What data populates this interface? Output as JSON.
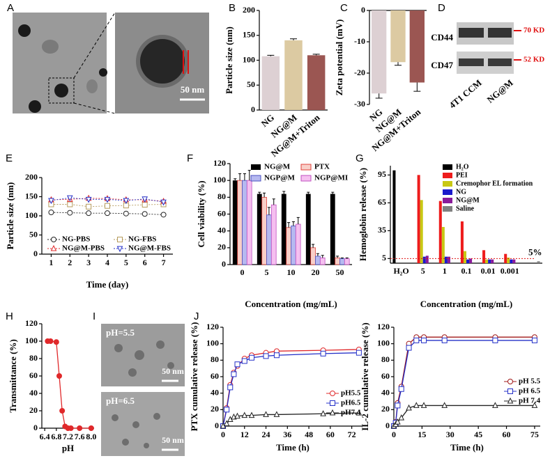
{
  "figure": {
    "panel_labels": [
      "A",
      "B",
      "C",
      "D",
      "E",
      "F",
      "G",
      "H",
      "I",
      "J"
    ],
    "tem_scale": "50 nm",
    "blot": {
      "rows": [
        "CD44",
        "CD47"
      ],
      "markers": [
        "70 KD",
        "52 KD"
      ],
      "lanes": [
        "4T1 CCM",
        "NG@M"
      ]
    },
    "micrographs": [
      {
        "label": "pH=5.5",
        "scale": "50 nm"
      },
      {
        "label": "pH=6.5",
        "scale": "50 nm"
      }
    ]
  },
  "chart_data": [
    {
      "type": "bar",
      "ylabel": "Particle size (nm)",
      "categories": [
        "NG",
        "NG@M",
        "NG@M+Triton"
      ],
      "values": [
        108,
        140,
        110
      ],
      "errors": [
        2,
        3,
        2
      ],
      "colors": [
        "#ddd0d3",
        "#dccaa2",
        "#9b5652"
      ],
      "ylim": [
        0,
        200
      ],
      "yticks": [
        0,
        50,
        100,
        150,
        200
      ]
    },
    {
      "type": "bar",
      "ylabel": "Zeta potential (mV)",
      "categories": [
        "NG",
        "NG@M",
        "NG@M+Triton"
      ],
      "values": [
        -26.5,
        -16.5,
        -23
      ],
      "errors": [
        1.5,
        1,
        2.8
      ],
      "colors": [
        "#ddd0d3",
        "#dccaa2",
        "#9b5652"
      ],
      "ylim": [
        -30,
        0
      ],
      "yticks": [
        -30,
        -20,
        -10,
        0
      ]
    },
    {
      "type": "line",
      "xlabel": "Time (day)",
      "ylabel": "Particle size (nm)",
      "x": [
        1,
        2,
        3,
        4,
        5,
        6,
        7
      ],
      "series": [
        {
          "name": "NG-PBS",
          "color": "#222222",
          "marker": "circle",
          "values": [
            109,
            108,
            107,
            107,
            106,
            105,
            103
          ]
        },
        {
          "name": "NG-FBS",
          "color": "#b59b5c",
          "marker": "square",
          "values": [
            130,
            130,
            124,
            126,
            127,
            129,
            130
          ]
        },
        {
          "name": "NG@M-PBS",
          "color": "#e0282a",
          "marker": "triangle",
          "values": [
            142,
            143,
            146,
            145,
            142,
            142,
            138
          ]
        },
        {
          "name": "NG@M-FBS",
          "color": "#2430c8",
          "marker": "triangle-down",
          "values": [
            140,
            147,
            143,
            143,
            140,
            144,
            136
          ]
        }
      ],
      "dashed": true,
      "marker_fill": "open",
      "xlim": [
        0.5,
        7.5
      ],
      "xticks": [
        1,
        2,
        3,
        4,
        5,
        6,
        7
      ],
      "ylim": [
        0,
        200
      ],
      "yticks": [
        0,
        50,
        100,
        150,
        200
      ]
    },
    {
      "type": "bar",
      "xlabel": "Concentration (mg/mL)",
      "ylabel": "Cell viability (%)",
      "categories": [
        "0",
        "5",
        "10",
        "20",
        "50"
      ],
      "series": [
        {
          "name": "NG@M",
          "color": "#000000",
          "values": [
            100,
            84,
            84,
            84,
            84
          ],
          "errors": [
            2,
            2,
            3,
            2,
            2
          ]
        },
        {
          "name": "PTX",
          "color": "#f8cfc8",
          "edgecolor": "#e0403a",
          "values": [
            100,
            80,
            44,
            20,
            8
          ],
          "errors": [
            8,
            5,
            6,
            4,
            2
          ]
        },
        {
          "name": "NGP@M",
          "color": "#b6b9f0",
          "edgecolor": "#4a50c0",
          "values": [
            100,
            59,
            46,
            10,
            7
          ],
          "errors": [
            8,
            9,
            5,
            3,
            1
          ]
        },
        {
          "name": "NGP@MI",
          "color": "#f5c0f0",
          "edgecolor": "#c050c0",
          "values": [
            100,
            71,
            48,
            8,
            7
          ],
          "errors": [
            12,
            7,
            8,
            3,
            1
          ]
        }
      ],
      "ylim": [
        0,
        120
      ],
      "yticks": [
        0,
        20,
        40,
        60,
        80,
        100,
        120
      ]
    },
    {
      "type": "bar",
      "xlabel": "Concentration (mg/mL)",
      "ylabel": "Hemoglobin release (%)",
      "categories": [
        "H₂O",
        "5",
        "1",
        "0.1",
        "0.01",
        "0.001",
        null
      ],
      "series": [
        {
          "name": "H₂O",
          "color": "#000000",
          "values": [
            100,
            null,
            null,
            null,
            null,
            null,
            null
          ]
        },
        {
          "name": "PEI",
          "color": "#ee1c1c",
          "values": [
            null,
            95,
            67,
            45,
            14,
            10,
            null
          ]
        },
        {
          "name": "Cremophor EL formation",
          "color": "#c8c814",
          "values": [
            null,
            68,
            39,
            13,
            4,
            6,
            null
          ]
        },
        {
          "name": "NG",
          "color": "#1a1acc",
          "values": [
            null,
            7,
            7,
            4,
            4,
            4,
            null
          ]
        },
        {
          "name": "NG@M",
          "color": "#8a1a9a",
          "values": [
            null,
            8,
            7,
            5,
            4,
            4,
            null
          ]
        },
        {
          "name": "Saline",
          "color": "#808080",
          "values": [
            null,
            null,
            null,
            null,
            null,
            null,
            2
          ]
        }
      ],
      "threshold": 5,
      "threshold_label": "5%",
      "ylim": [
        0,
        105
      ],
      "yticks": [
        5,
        35,
        65,
        95
      ]
    },
    {
      "type": "line",
      "xlabel": "pH",
      "ylabel": "Transmittance (%)",
      "x": [
        6.5,
        6.6,
        6.8,
        6.9,
        7.0,
        7.1,
        7.2,
        7.3,
        7.6,
        8.0
      ],
      "series": [
        {
          "color": "#e0282a",
          "marker": "circle",
          "values": [
            100,
            100,
            99,
            60,
            20,
            2,
            0,
            0,
            0,
            0
          ]
        }
      ],
      "marker_fill": "filled",
      "xlim": [
        6.3,
        8.1
      ],
      "xticks": [
        6.4,
        6.8,
        7.2,
        7.6,
        {
          "value": 8,
          "label": "8.0"
        }
      ],
      "ylim": [
        0,
        120
      ],
      "yticks": [
        0,
        20,
        40,
        60,
        80,
        100,
        120
      ]
    },
    {
      "type": "line",
      "xlabel": "Time (h)",
      "ylabel": "PTX cumulative release (%)",
      "x": [
        0,
        2,
        4,
        6,
        8,
        12,
        16,
        24,
        30,
        56,
        76
      ],
      "series": [
        {
          "name": "pH5.5",
          "color": "#e0282a",
          "marker": "circle",
          "values": [
            0,
            22,
            50,
            65,
            73,
            82,
            86,
            89,
            91,
            92,
            93
          ]
        },
        {
          "name": "pH6.5",
          "color": "#2430c8",
          "marker": "square",
          "values": [
            0,
            20,
            47,
            63,
            75,
            79,
            83,
            85,
            86,
            88,
            89
          ]
        },
        {
          "name": "pH7.4",
          "color": "#222222",
          "marker": "triangle",
          "values": [
            0,
            3,
            8,
            11,
            12,
            13,
            13,
            14,
            14,
            15,
            16
          ]
        }
      ],
      "marker_fill": "open",
      "xlim": [
        0,
        78
      ],
      "xticks": [
        0,
        12,
        24,
        36,
        48,
        60,
        72
      ],
      "ylim": [
        0,
        120
      ],
      "yticks": [
        0,
        20,
        40,
        60,
        80,
        100,
        120
      ]
    },
    {
      "type": "line",
      "xlabel": "Time (h)",
      "ylabel": "IL-2 cumulative release (%)",
      "x": [
        0,
        1,
        2,
        4,
        8,
        12,
        16,
        27,
        54,
        75
      ],
      "series": [
        {
          "name": "pH 5.5",
          "color": "#a01818",
          "marker": "circle",
          "values": [
            0,
            5,
            28,
            48,
            100,
            108,
            108,
            108,
            108,
            108
          ]
        },
        {
          "name": "pH 6.5",
          "color": "#2430c8",
          "marker": "square",
          "values": [
            0,
            4,
            25,
            45,
            95,
            104,
            104,
            104,
            104,
            104
          ]
        },
        {
          "name": "pH 7.4",
          "color": "#222222",
          "marker": "triangle",
          "values": [
            0,
            2,
            5,
            10,
            22,
            25,
            25,
            25,
            25,
            25
          ]
        }
      ],
      "marker_fill": "open",
      "xlim": [
        0,
        78
      ],
      "xticks": [
        0,
        15,
        30,
        45,
        60,
        75
      ],
      "ylim": [
        0,
        120
      ],
      "yticks": [
        0,
        20,
        40,
        60,
        80,
        100,
        120
      ]
    }
  ]
}
